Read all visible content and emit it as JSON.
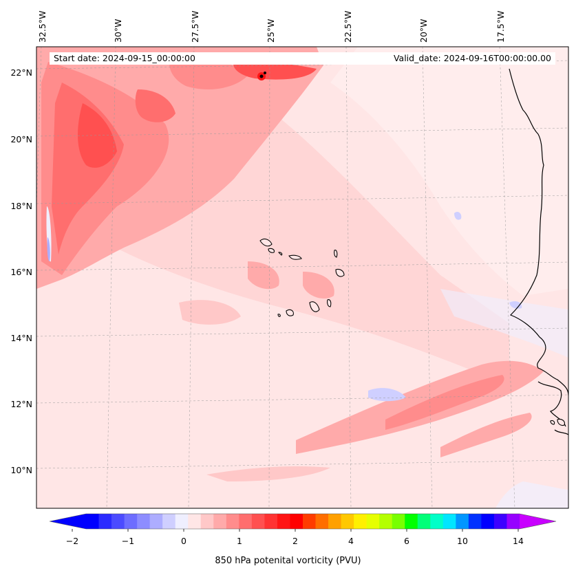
{
  "map": {
    "start_date": "Start date: 2024-09-15_00:00:00",
    "valid_date": "Valid_date: 2024-09-16T00:00:00.00",
    "lon_labels": [
      "32.5°W",
      "30°W",
      "27.5°W",
      "25°W",
      "22.5°W",
      "20°W",
      "17.5°W"
    ],
    "lat_labels": [
      "22°N",
      "20°N",
      "18°N",
      "16°N",
      "14°N",
      "12°N",
      "10°N"
    ],
    "background_color": "#ffe6e6",
    "coastline_color": "#000000"
  },
  "colorbar": {
    "label": "850 hPa potenital vorticity (PVU)",
    "tick_labels": [
      "−2",
      "−1",
      "0",
      "1",
      "2",
      "4",
      "6",
      "10",
      "14"
    ],
    "colors": [
      "#0000ff",
      "#2b2bff",
      "#4b4bff",
      "#6d6dff",
      "#8d8dff",
      "#adadff",
      "#cfcfff",
      "#efefff",
      "#ffe6e6",
      "#ffc8c8",
      "#ffaaaa",
      "#ff8c8c",
      "#ff6e6e",
      "#ff5050",
      "#ff3232",
      "#ff1414",
      "#ff0000",
      "#ff3c00",
      "#ff6e00",
      "#ffa000",
      "#ffc800",
      "#fff000",
      "#e6ff00",
      "#b4ff00",
      "#78ff00",
      "#00ff00",
      "#00ff78",
      "#00ffc8",
      "#00e6ff",
      "#0096ff",
      "#0032ff",
      "#0000ff",
      "#3c00ff",
      "#9600ff"
    ],
    "under_color": "#0000ff",
    "over_color": "#c800ff"
  }
}
